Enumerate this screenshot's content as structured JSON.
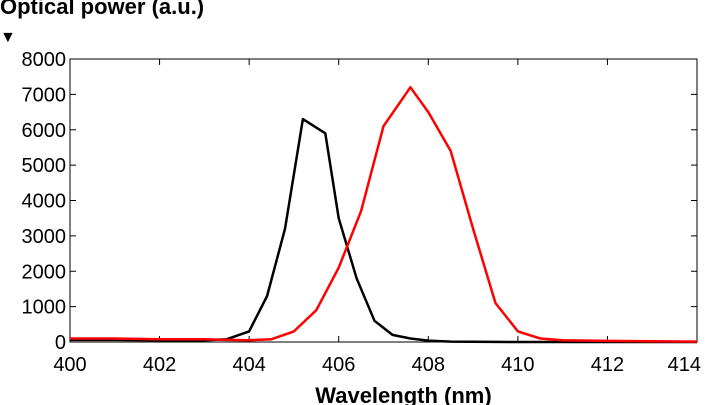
{
  "chart_data": {
    "type": "line",
    "ylabel": "Optical power (a.u.)",
    "ylabel_arrow": "▼",
    "xlabel": "Wavelength (nm)",
    "xlim": [
      400,
      414
    ],
    "ylim": [
      0,
      8000
    ],
    "xticks": [
      "400",
      "402",
      "404",
      "406",
      "408",
      "410",
      "412",
      "414"
    ],
    "yticks": [
      "0",
      "1000",
      "2000",
      "3000",
      "4000",
      "5000",
      "6000",
      "7000",
      "8000"
    ],
    "grid": false,
    "series": [
      {
        "color": "#000000",
        "x": [
          400,
          401,
          402,
          403,
          403.5,
          404,
          404.4,
          404.8,
          405.2,
          405.7,
          406,
          406.4,
          406.8,
          407.2,
          407.6,
          408,
          408.5,
          409,
          410,
          411,
          412,
          413,
          414
        ],
        "y": [
          60,
          60,
          50,
          50,
          80,
          300,
          1300,
          3200,
          6300,
          5900,
          3500,
          1800,
          600,
          200,
          100,
          40,
          10,
          5,
          0,
          0,
          0,
          0,
          0
        ]
      },
      {
        "color": "#ff0000",
        "x": [
          400,
          401,
          402,
          403,
          403.5,
          404,
          404.5,
          405,
          405.5,
          406,
          406.5,
          407,
          407.6,
          408,
          408.5,
          409,
          409.5,
          410,
          410.5,
          411,
          412,
          413,
          414
        ],
        "y": [
          100,
          100,
          80,
          80,
          60,
          50,
          80,
          300,
          900,
          2100,
          3700,
          6100,
          7200,
          6500,
          5400,
          3200,
          1100,
          300,
          100,
          50,
          30,
          20,
          10
        ]
      }
    ]
  }
}
